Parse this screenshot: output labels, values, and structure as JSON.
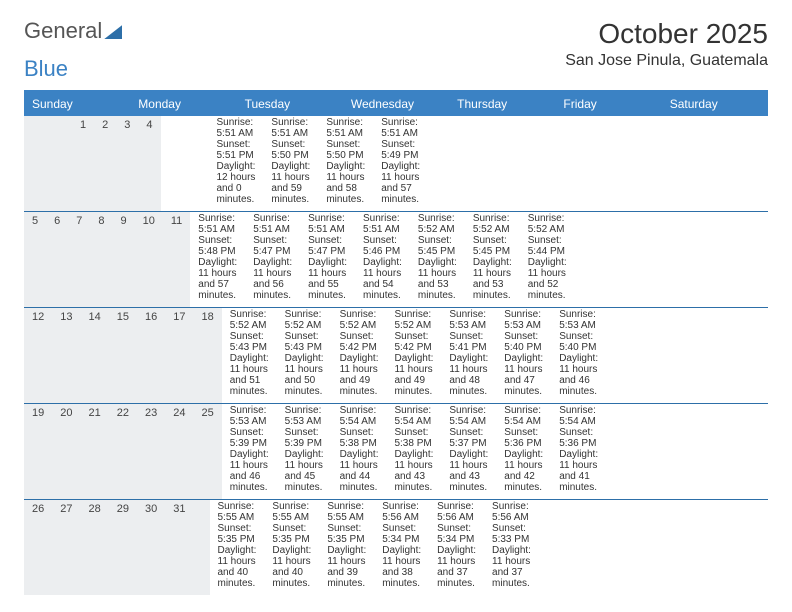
{
  "logo": {
    "general": "General",
    "blue": "Blue"
  },
  "title": "October 2025",
  "location": "San Jose Pinula, Guatemala",
  "colors": {
    "header_bg": "#3b82c4",
    "row_divider": "#2d6fa8",
    "daynum_bg": "#eceef0",
    "text": "#333333",
    "logo_gray": "#666666",
    "page_bg": "#ffffff"
  },
  "day_names": [
    "Sunday",
    "Monday",
    "Tuesday",
    "Wednesday",
    "Thursday",
    "Friday",
    "Saturday"
  ],
  "weeks": [
    [
      null,
      null,
      null,
      {
        "n": "1",
        "sr": "5:51 AM",
        "ss": "5:51 PM",
        "dl": "12 hours and 0 minutes."
      },
      {
        "n": "2",
        "sr": "5:51 AM",
        "ss": "5:50 PM",
        "dl": "11 hours and 59 minutes."
      },
      {
        "n": "3",
        "sr": "5:51 AM",
        "ss": "5:50 PM",
        "dl": "11 hours and 58 minutes."
      },
      {
        "n": "4",
        "sr": "5:51 AM",
        "ss": "5:49 PM",
        "dl": "11 hours and 57 minutes."
      }
    ],
    [
      {
        "n": "5",
        "sr": "5:51 AM",
        "ss": "5:48 PM",
        "dl": "11 hours and 57 minutes."
      },
      {
        "n": "6",
        "sr": "5:51 AM",
        "ss": "5:47 PM",
        "dl": "11 hours and 56 minutes."
      },
      {
        "n": "7",
        "sr": "5:51 AM",
        "ss": "5:47 PM",
        "dl": "11 hours and 55 minutes."
      },
      {
        "n": "8",
        "sr": "5:51 AM",
        "ss": "5:46 PM",
        "dl": "11 hours and 54 minutes."
      },
      {
        "n": "9",
        "sr": "5:52 AM",
        "ss": "5:45 PM",
        "dl": "11 hours and 53 minutes."
      },
      {
        "n": "10",
        "sr": "5:52 AM",
        "ss": "5:45 PM",
        "dl": "11 hours and 53 minutes."
      },
      {
        "n": "11",
        "sr": "5:52 AM",
        "ss": "5:44 PM",
        "dl": "11 hours and 52 minutes."
      }
    ],
    [
      {
        "n": "12",
        "sr": "5:52 AM",
        "ss": "5:43 PM",
        "dl": "11 hours and 51 minutes."
      },
      {
        "n": "13",
        "sr": "5:52 AM",
        "ss": "5:43 PM",
        "dl": "11 hours and 50 minutes."
      },
      {
        "n": "14",
        "sr": "5:52 AM",
        "ss": "5:42 PM",
        "dl": "11 hours and 49 minutes."
      },
      {
        "n": "15",
        "sr": "5:52 AM",
        "ss": "5:42 PM",
        "dl": "11 hours and 49 minutes."
      },
      {
        "n": "16",
        "sr": "5:53 AM",
        "ss": "5:41 PM",
        "dl": "11 hours and 48 minutes."
      },
      {
        "n": "17",
        "sr": "5:53 AM",
        "ss": "5:40 PM",
        "dl": "11 hours and 47 minutes."
      },
      {
        "n": "18",
        "sr": "5:53 AM",
        "ss": "5:40 PM",
        "dl": "11 hours and 46 minutes."
      }
    ],
    [
      {
        "n": "19",
        "sr": "5:53 AM",
        "ss": "5:39 PM",
        "dl": "11 hours and 46 minutes."
      },
      {
        "n": "20",
        "sr": "5:53 AM",
        "ss": "5:39 PM",
        "dl": "11 hours and 45 minutes."
      },
      {
        "n": "21",
        "sr": "5:54 AM",
        "ss": "5:38 PM",
        "dl": "11 hours and 44 minutes."
      },
      {
        "n": "22",
        "sr": "5:54 AM",
        "ss": "5:38 PM",
        "dl": "11 hours and 43 minutes."
      },
      {
        "n": "23",
        "sr": "5:54 AM",
        "ss": "5:37 PM",
        "dl": "11 hours and 43 minutes."
      },
      {
        "n": "24",
        "sr": "5:54 AM",
        "ss": "5:36 PM",
        "dl": "11 hours and 42 minutes."
      },
      {
        "n": "25",
        "sr": "5:54 AM",
        "ss": "5:36 PM",
        "dl": "11 hours and 41 minutes."
      }
    ],
    [
      {
        "n": "26",
        "sr": "5:55 AM",
        "ss": "5:35 PM",
        "dl": "11 hours and 40 minutes."
      },
      {
        "n": "27",
        "sr": "5:55 AM",
        "ss": "5:35 PM",
        "dl": "11 hours and 40 minutes."
      },
      {
        "n": "28",
        "sr": "5:55 AM",
        "ss": "5:35 PM",
        "dl": "11 hours and 39 minutes."
      },
      {
        "n": "29",
        "sr": "5:56 AM",
        "ss": "5:34 PM",
        "dl": "11 hours and 38 minutes."
      },
      {
        "n": "30",
        "sr": "5:56 AM",
        "ss": "5:34 PM",
        "dl": "11 hours and 37 minutes."
      },
      {
        "n": "31",
        "sr": "5:56 AM",
        "ss": "5:33 PM",
        "dl": "11 hours and 37 minutes."
      },
      null
    ]
  ],
  "labels": {
    "sunrise": "Sunrise:",
    "sunset": "Sunset:",
    "daylight": "Daylight:"
  }
}
